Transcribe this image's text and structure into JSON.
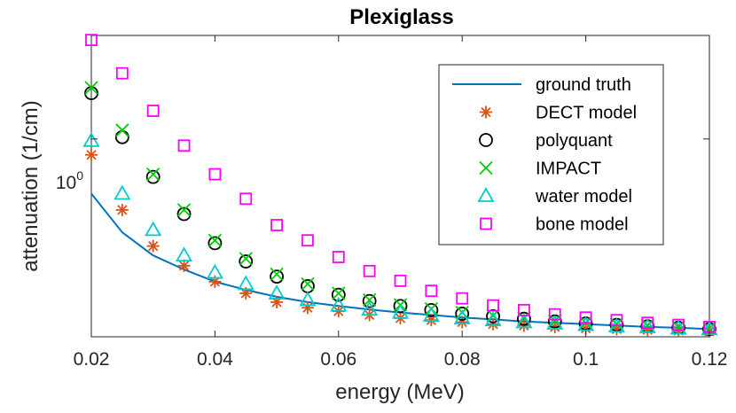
{
  "chart_data": {
    "type": "scatter",
    "title": "Plexiglass",
    "xlabel": "energy (MeV)",
    "ylabel": "attenuation (1/cm)",
    "xlim": [
      0.02,
      0.12
    ],
    "ylim": [
      0.115,
      3.1
    ],
    "yscale": "log",
    "xticks": [
      0.02,
      0.04,
      0.06,
      0.08,
      0.1,
      0.12
    ],
    "xtick_labels": [
      "0.02",
      "0.04",
      "0.06",
      "0.08",
      "0.1",
      "0.12"
    ],
    "ytick_base": "10",
    "ytick_exp": "0",
    "legend_position": "top-right",
    "x": [
      0.02,
      0.025,
      0.03,
      0.035,
      0.04,
      0.045,
      0.05,
      0.055,
      0.06,
      0.065,
      0.07,
      0.075,
      0.08,
      0.085,
      0.09,
      0.095,
      0.1,
      0.105,
      0.11,
      0.115,
      0.12
    ],
    "series": [
      {
        "name": "ground truth",
        "marker": "line",
        "color": "#0072BD",
        "values": [
          0.55,
          0.36,
          0.28,
          0.24,
          0.21,
          0.192,
          0.178,
          0.168,
          0.161,
          0.155,
          0.15,
          0.146,
          0.142,
          0.139,
          0.136,
          0.134,
          0.132,
          0.13,
          0.128,
          0.127,
          0.125
        ]
      },
      {
        "name": "DECT model",
        "marker": "asterisk",
        "color": "#D95319",
        "values": [
          0.84,
          0.46,
          0.31,
          0.25,
          0.21,
          0.185,
          0.168,
          0.158,
          0.152,
          0.146,
          0.141,
          0.138,
          0.135,
          0.132,
          0.13,
          0.128,
          0.126,
          0.125,
          0.124,
          0.123,
          0.122
        ]
      },
      {
        "name": "polyquant",
        "marker": "circle",
        "color": "#000000",
        "values": [
          1.65,
          1.02,
          0.66,
          0.44,
          0.32,
          0.262,
          0.222,
          0.2,
          0.182,
          0.17,
          0.161,
          0.154,
          0.148,
          0.144,
          0.14,
          0.136,
          0.133,
          0.131,
          0.129,
          0.127,
          0.125
        ]
      },
      {
        "name": "IMPACT",
        "marker": "x",
        "color": "#00CC00",
        "values": [
          1.75,
          1.1,
          0.68,
          0.46,
          0.33,
          0.27,
          0.228,
          0.205,
          0.185,
          0.172,
          0.163,
          0.156,
          0.15,
          0.145,
          0.141,
          0.137,
          0.134,
          0.132,
          0.13,
          0.128,
          0.126
        ]
      },
      {
        "name": "water model",
        "marker": "triangle",
        "color": "#00CCCC",
        "values": [
          0.98,
          0.55,
          0.37,
          0.28,
          0.232,
          0.205,
          0.185,
          0.172,
          0.162,
          0.155,
          0.15,
          0.145,
          0.141,
          0.138,
          0.135,
          0.133,
          0.131,
          0.129,
          0.128,
          0.126,
          0.125
        ]
      },
      {
        "name": "bone model",
        "marker": "square",
        "color": "#FF00FF",
        "values": [
          2.95,
          2.05,
          1.36,
          0.93,
          0.68,
          0.52,
          0.39,
          0.33,
          0.275,
          0.236,
          0.212,
          0.19,
          0.175,
          0.162,
          0.154,
          0.147,
          0.142,
          0.138,
          0.134,
          0.131,
          0.128
        ]
      }
    ]
  }
}
